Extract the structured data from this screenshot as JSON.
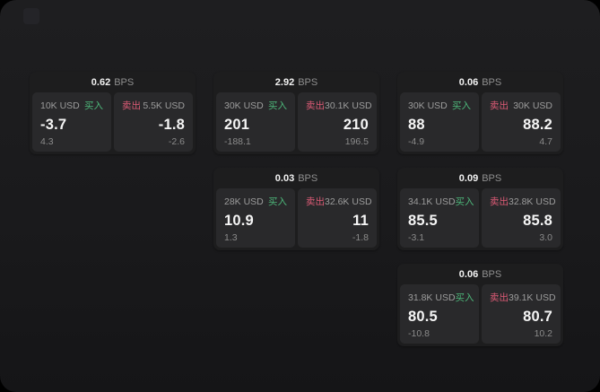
{
  "labels": {
    "buy": "买入",
    "sell": "卖出",
    "bps_unit": "BPS"
  },
  "colors": {
    "buy_green": "#4db77a",
    "sell_red": "#dd5b76",
    "surface_bg": "#1a1a1c",
    "card_bg": "#1d1d1e",
    "panel_bg": "#29292b",
    "primary_text": "#f5f5f5",
    "muted_text": "#9c9c9c"
  },
  "cards": [
    {
      "col": 1,
      "row": 1,
      "bps_value": "0.62",
      "buy": {
        "amount": "10K USD",
        "value": "-3.7",
        "sub_value": "4.3"
      },
      "sell": {
        "amount": "5.5K USD",
        "value": "-1.8",
        "sub_value": "-2.6"
      }
    },
    {
      "col": 2,
      "row": 1,
      "bps_value": "2.92",
      "buy": {
        "amount": "30K USD",
        "value": "201",
        "sub_value": "-188.1"
      },
      "sell": {
        "amount": "30.1K USD",
        "value": "210",
        "sub_value": "196.5"
      }
    },
    {
      "col": 3,
      "row": 1,
      "bps_value": "0.06",
      "buy": {
        "amount": "30K USD",
        "value": "88",
        "sub_value": "-4.9"
      },
      "sell": {
        "amount": "30K USD",
        "value": "88.2",
        "sub_value": "4.7"
      }
    },
    {
      "col": 2,
      "row": 2,
      "bps_value": "0.03",
      "buy": {
        "amount": "28K USD",
        "value": "10.9",
        "sub_value": "1.3"
      },
      "sell": {
        "amount": "32.6K USD",
        "value": "11",
        "sub_value": "-1.8"
      }
    },
    {
      "col": 3,
      "row": 2,
      "bps_value": "0.09",
      "buy": {
        "amount": "34.1K USD",
        "value": "85.5",
        "sub_value": "-3.1"
      },
      "sell": {
        "amount": "32.8K USD",
        "value": "85.8",
        "sub_value": "3.0"
      }
    },
    {
      "col": 3,
      "row": 3,
      "bps_value": "0.06",
      "buy": {
        "amount": "31.8K USD",
        "value": "80.5",
        "sub_value": "-10.8"
      },
      "sell": {
        "amount": "39.1K USD",
        "value": "80.7",
        "sub_value": "10.2"
      }
    }
  ]
}
